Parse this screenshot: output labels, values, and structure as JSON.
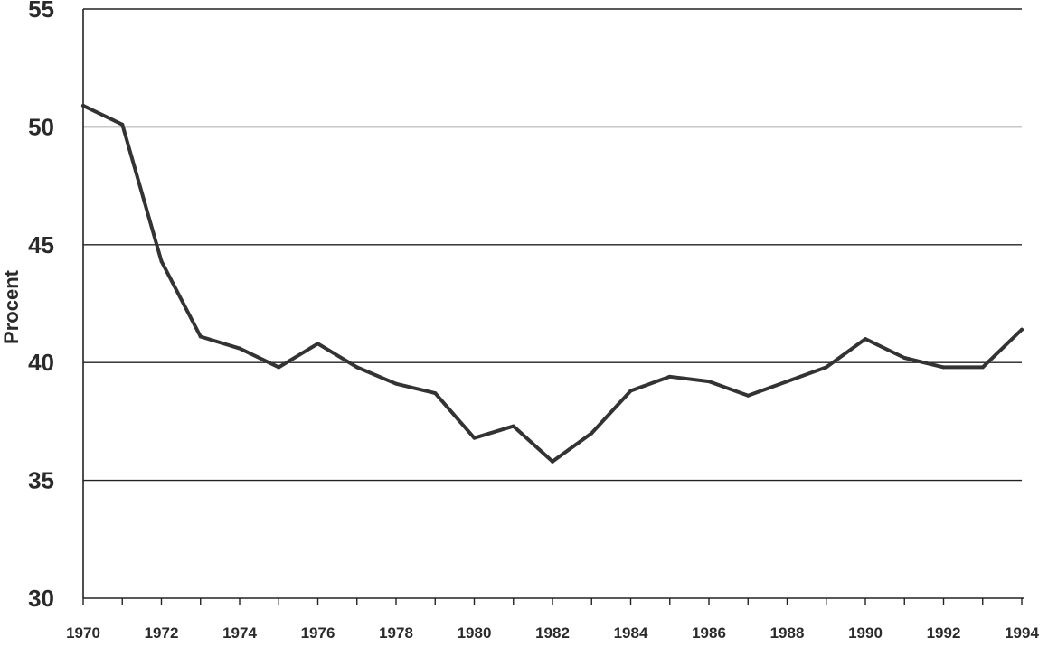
{
  "chart_data": {
    "type": "line",
    "title": "",
    "xlabel": "",
    "ylabel": "Procent",
    "xlim": [
      1970,
      1994
    ],
    "ylim": [
      30,
      55
    ],
    "y_ticks": [
      30,
      35,
      40,
      45,
      50,
      55
    ],
    "x_tick_labels": [
      "1970",
      "1972",
      "1974",
      "1976",
      "1978",
      "1980",
      "1982",
      "1984",
      "1986",
      "1988",
      "1990",
      "1992",
      "1994"
    ],
    "grid": "horizontal",
    "legend": "none",
    "colors": {
      "line": "#333333",
      "grid": "#222222",
      "text": "#2a2a2a"
    },
    "series": [
      {
        "x": [
          1970,
          1971,
          1972,
          1973,
          1974,
          1975,
          1976,
          1977,
          1978,
          1979,
          1980,
          1981,
          1982,
          1983,
          1984,
          1985,
          1986,
          1987,
          1988,
          1989,
          1990,
          1991,
          1992,
          1993,
          1994
        ],
        "values": [
          50.9,
          50.1,
          44.3,
          41.1,
          40.6,
          39.8,
          40.8,
          39.8,
          39.1,
          38.7,
          36.8,
          37.3,
          35.8,
          37.0,
          38.8,
          39.4,
          39.2,
          38.6,
          39.2,
          39.8,
          41.0,
          40.2,
          39.8,
          39.8,
          41.4
        ]
      }
    ]
  }
}
